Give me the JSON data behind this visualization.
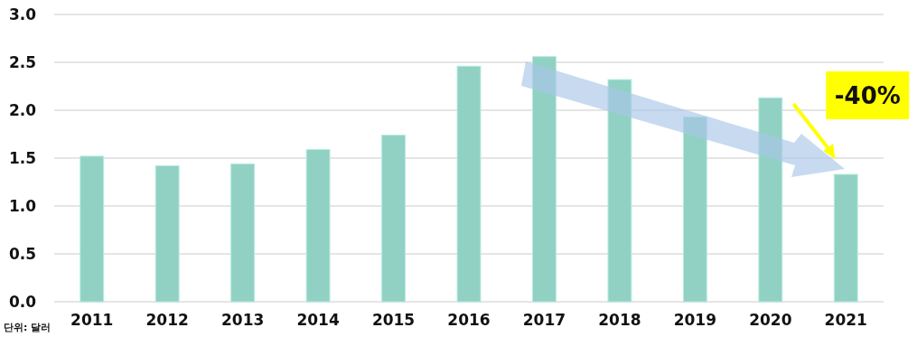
{
  "chart_data": {
    "type": "bar",
    "categories": [
      "2011",
      "2012",
      "2013",
      "2014",
      "2015",
      "2016",
      "2017",
      "2018",
      "2019",
      "2020",
      "2021"
    ],
    "values": [
      1.52,
      1.42,
      1.44,
      1.59,
      1.74,
      2.46,
      2.56,
      2.32,
      1.93,
      2.13,
      1.33
    ],
    "color": "#91d1c4",
    "ylim": [
      0,
      3
    ],
    "yticks": [
      {
        "value": 0,
        "label": "0.0"
      },
      {
        "value": 0.5,
        "label": "0.5"
      },
      {
        "value": 1,
        "label": "1.0"
      },
      {
        "value": 1.5,
        "label": "1.5"
      },
      {
        "value": 2,
        "label": "2.0"
      },
      {
        "value": 2.5,
        "label": "2.5"
      },
      {
        "value": 3,
        "label": "3.0"
      }
    ],
    "grid": "y",
    "annotations": [
      {
        "text": "-40%",
        "x": "2021",
        "y": 1.33
      },
      "단위: 달러"
    ]
  }
}
